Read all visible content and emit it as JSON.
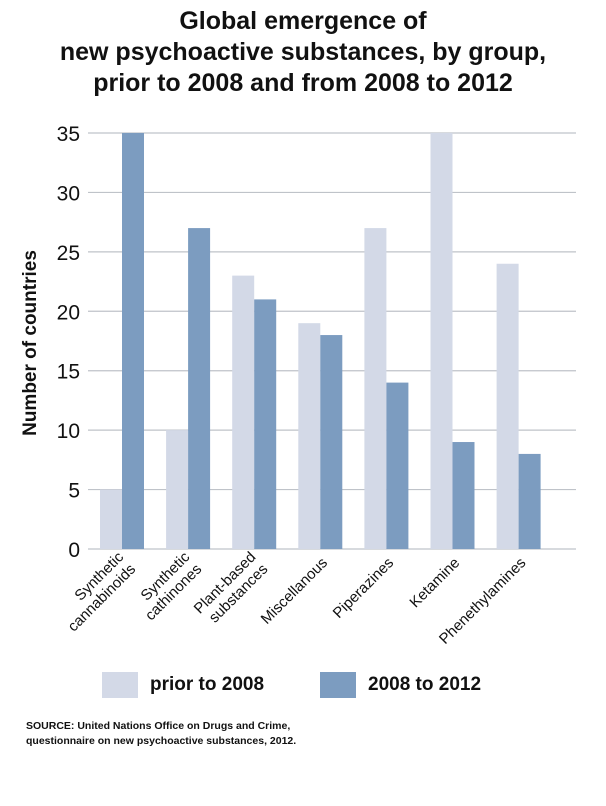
{
  "chart_data": {
    "type": "bar",
    "title_lines": [
      "Global emergence of",
      "new psychoactive substances, by group,",
      "prior to 2008 and from 2008 to 2012"
    ],
    "ylabel": "Number of countries",
    "xlabel": "",
    "ylim": [
      0,
      35
    ],
    "yticks": [
      0,
      5,
      10,
      15,
      20,
      25,
      30,
      35
    ],
    "grid": true,
    "legend_position": "bottom",
    "categories": [
      [
        "Synthetic",
        "cannabinoids"
      ],
      [
        "Synthetic",
        "cathinones"
      ],
      [
        "Plant-based",
        "substances"
      ],
      [
        "Miscellanous"
      ],
      [
        "Piperazines"
      ],
      [
        "Ketamine"
      ],
      [
        "Phenethylamines"
      ]
    ],
    "series": [
      {
        "name": "prior to 2008",
        "color": "#d3d9e7",
        "values": [
          5,
          10,
          23,
          19,
          27,
          35,
          24
        ]
      },
      {
        "name": "2008 to 2012",
        "color": "#7c9cc0",
        "values": [
          35,
          27,
          21,
          18,
          14,
          9,
          8
        ]
      }
    ]
  },
  "source": {
    "line1": "SOURCE:  United Nations Office on Drugs and Crime,",
    "line2": "questionnaire on new psychoactive substances, 2012."
  }
}
